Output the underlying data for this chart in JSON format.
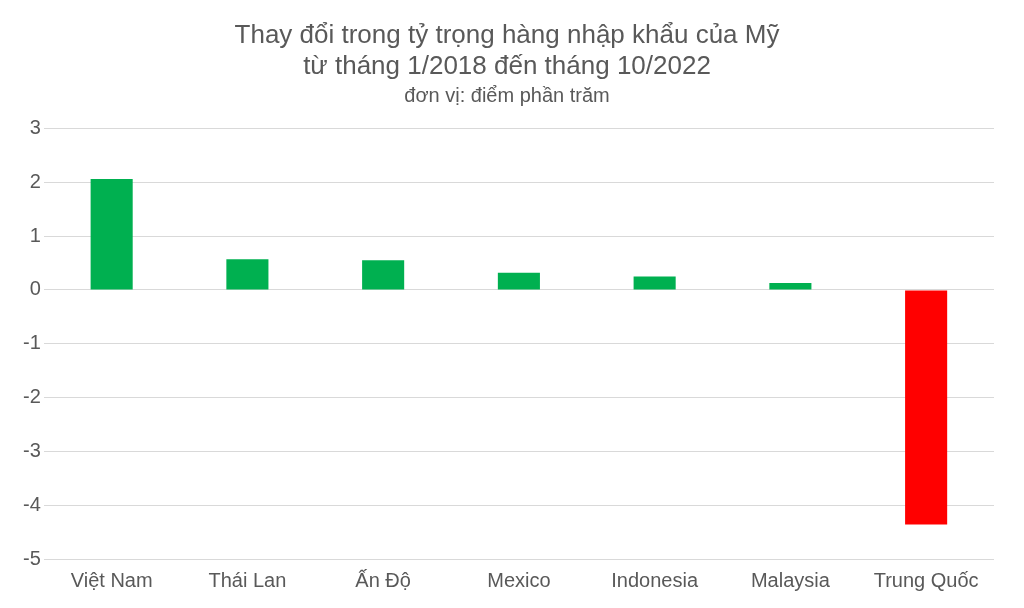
{
  "chart_data": {
    "type": "bar",
    "title": "Thay đổi trong tỷ trọng hàng nhập khẩu của Mỹ\ntừ tháng 1/2018 đến tháng 10/2022",
    "subtitle": "đơn vị: điểm phần trăm",
    "categories": [
      "Việt Nam",
      "Thái Lan",
      "Ấn Độ",
      "Mexico",
      "Indonesia",
      "Malaysia",
      "Trung Quốc"
    ],
    "values": [
      2.06,
      0.57,
      0.55,
      0.32,
      0.25,
      0.13,
      -4.36
    ],
    "colors": [
      "#00b050",
      "#00b050",
      "#00b050",
      "#00b050",
      "#00b050",
      "#00b050",
      "#ff0000"
    ],
    "ylim": [
      -5,
      3
    ],
    "yticks": [
      -5,
      -4,
      -3,
      -2,
      -1,
      0,
      1,
      2,
      3
    ],
    "grid": "y",
    "legend": false
  }
}
